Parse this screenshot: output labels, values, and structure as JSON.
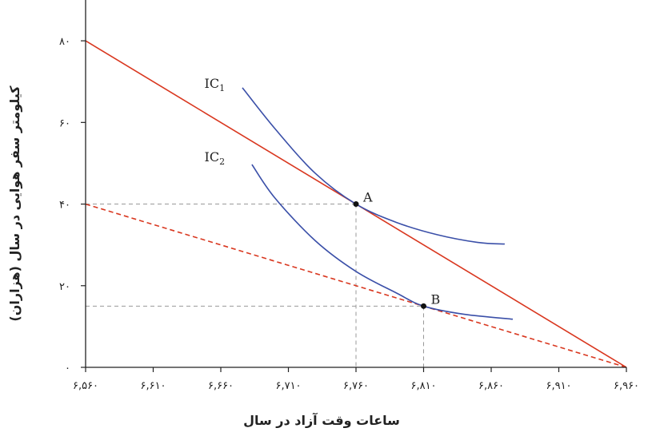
{
  "chart_data": {
    "type": "line",
    "xlabel": "ساعات وقت آزاد در سال",
    "ylabel": "کیلومتر سفر هوایی در سال (هزاران)",
    "xlim": [
      6560,
      6960
    ],
    "ylim": [
      0,
      90
    ],
    "x_ticks": [
      6560,
      6610,
      6660,
      6710,
      6760,
      6810,
      6860,
      6910,
      6960
    ],
    "x_tick_labels": [
      "۶,۵۶۰",
      "۶,۶۱۰",
      "۶,۶۶۰",
      "۶,۷۱۰",
      "۶,۷۶۰",
      "۶,۸۱۰",
      "۶,۸۶۰",
      "۶,۹۱۰",
      "۶,۹۶۰"
    ],
    "y_ticks": [
      0,
      20,
      40,
      60,
      80
    ],
    "y_tick_labels": [
      "۰",
      "۲۰",
      "۴۰",
      "۶۰",
      "۸۰"
    ],
    "grid": false,
    "colors": {
      "budget": "#d9371f",
      "indifference": "#3a4fa8",
      "guide": "#999999",
      "point": "#111111",
      "axis": "#222222"
    },
    "series": [
      {
        "name": "",
        "style": "solid",
        "color": "#d9371f",
        "x": [
          6560,
          6960
        ],
        "y": [
          80,
          0
        ]
      },
      {
        "name": "",
        "style": "dashed",
        "color": "#d9371f",
        "x": [
          6560,
          6960
        ],
        "y": [
          40,
          0
        ]
      },
      {
        "name": "IC₁",
        "style": "solid",
        "color": "#3a4fa8",
        "x": [
          6676,
          6700,
          6730,
          6760,
          6790,
          6820,
          6850,
          6870
        ],
        "y": [
          68.5,
          58.5,
          47.5,
          40,
          35.5,
          32.5,
          30.6,
          30.2
        ]
      },
      {
        "name": "IC₂",
        "style": "solid",
        "color": "#3a4fa8",
        "x": [
          6683,
          6700,
          6730,
          6760,
          6790,
          6810,
          6840,
          6876
        ],
        "y": [
          49.7,
          41.5,
          31,
          23.5,
          18.2,
          15,
          13,
          11.8
        ]
      }
    ],
    "curve_labels": [
      {
        "base": "IC",
        "sub": "1",
        "x": 6663,
        "y": 68.5
      },
      {
        "base": "IC",
        "sub": "2",
        "x": 6663,
        "y": 50.5
      }
    ],
    "points": [
      {
        "label": "A",
        "x": 6760,
        "y": 40
      },
      {
        "label": "B",
        "x": 6810,
        "y": 15
      }
    ]
  }
}
